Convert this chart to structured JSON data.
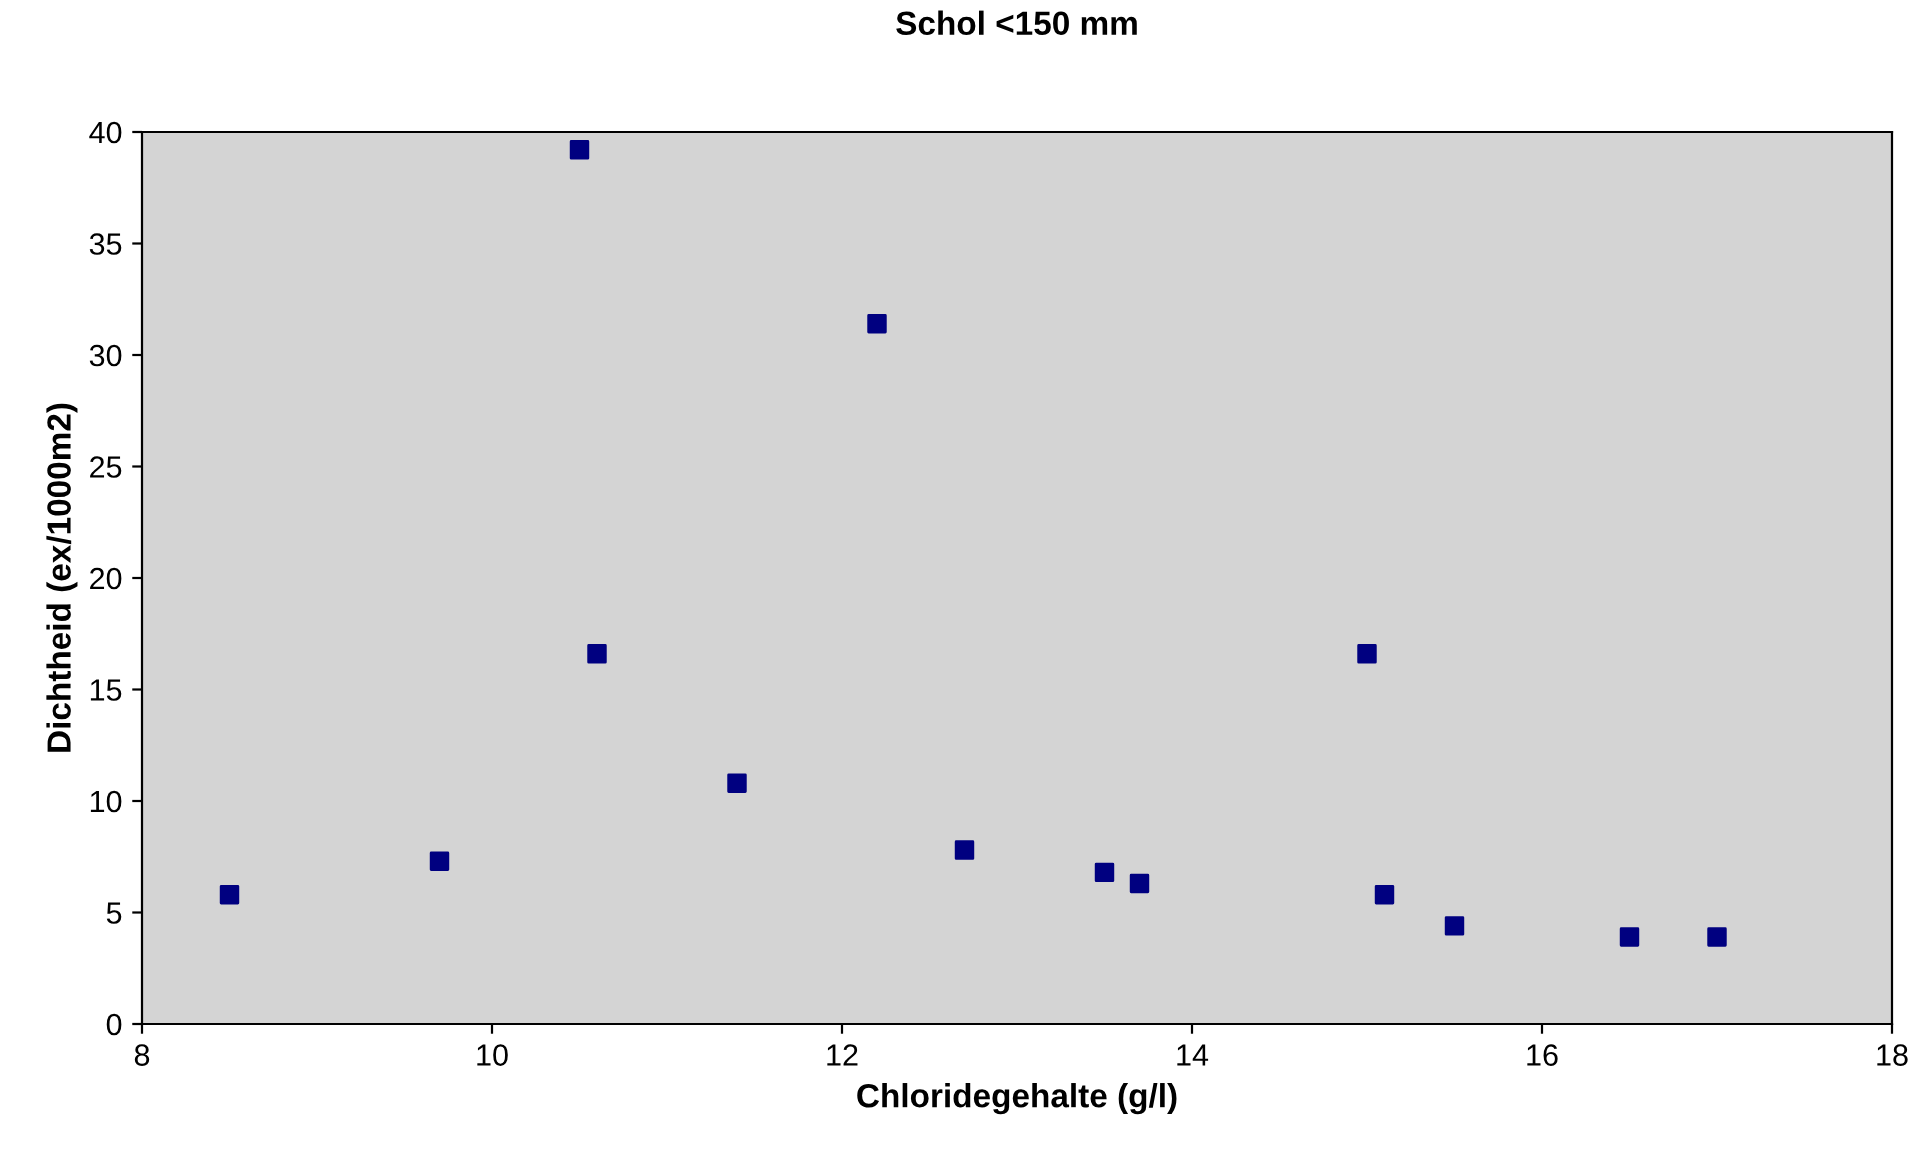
{
  "chart_data": {
    "type": "scatter",
    "title": "Schol <150 mm",
    "xlabel": "Chloridegehalte (g/l)",
    "ylabel": "Dichtheid (ex/1000m2)",
    "x": [
      10.5,
      12.2,
      10.6,
      11.4,
      15.0,
      8.5,
      9.7,
      12.7,
      13.5,
      13.7,
      15.1,
      15.5,
      16.5,
      17.0
    ],
    "values": [
      39.2,
      31.4,
      16.6,
      10.8,
      16.6,
      5.8,
      7.3,
      7.8,
      6.8,
      6.3,
      5.8,
      4.4,
      3.9,
      3.9
    ],
    "color": "#000080",
    "marker": "square",
    "xlim": [
      8,
      18
    ],
    "ylim": [
      0,
      40
    ],
    "xticks": [
      8,
      10,
      12,
      14,
      16,
      18
    ],
    "yticks": [
      0,
      5,
      10,
      15,
      20,
      25,
      30,
      35,
      40
    ]
  }
}
